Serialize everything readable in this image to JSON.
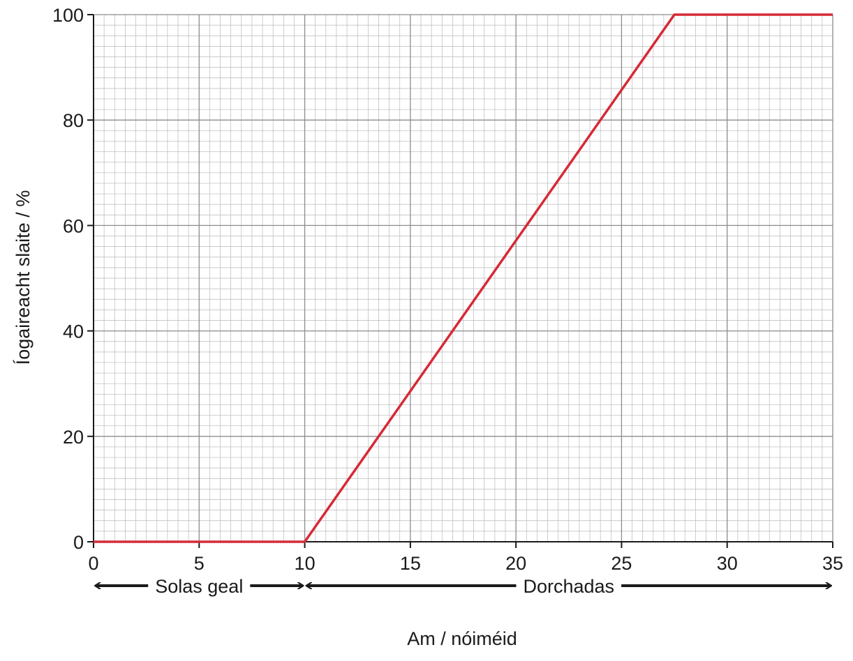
{
  "chart_data": {
    "type": "line",
    "xlabel": "Am / nóiméid",
    "ylabel": "Íogaireacht slaite / %",
    "xlim": [
      0,
      35
    ],
    "ylim": [
      0,
      100
    ],
    "x_ticks": [
      0,
      5,
      10,
      15,
      20,
      25,
      30,
      35
    ],
    "y_ticks": [
      0,
      20,
      40,
      60,
      80,
      100
    ],
    "grid": true,
    "series": [
      {
        "color": "#d62a36",
        "x": [
          0,
          10,
          27.5,
          35
        ],
        "y": [
          0,
          0,
          100,
          100
        ]
      }
    ],
    "phases": [
      {
        "label": "Solas geal",
        "from": 0,
        "to": 10
      },
      {
        "label": "Dorchadas",
        "from": 10,
        "to": 35
      }
    ]
  }
}
